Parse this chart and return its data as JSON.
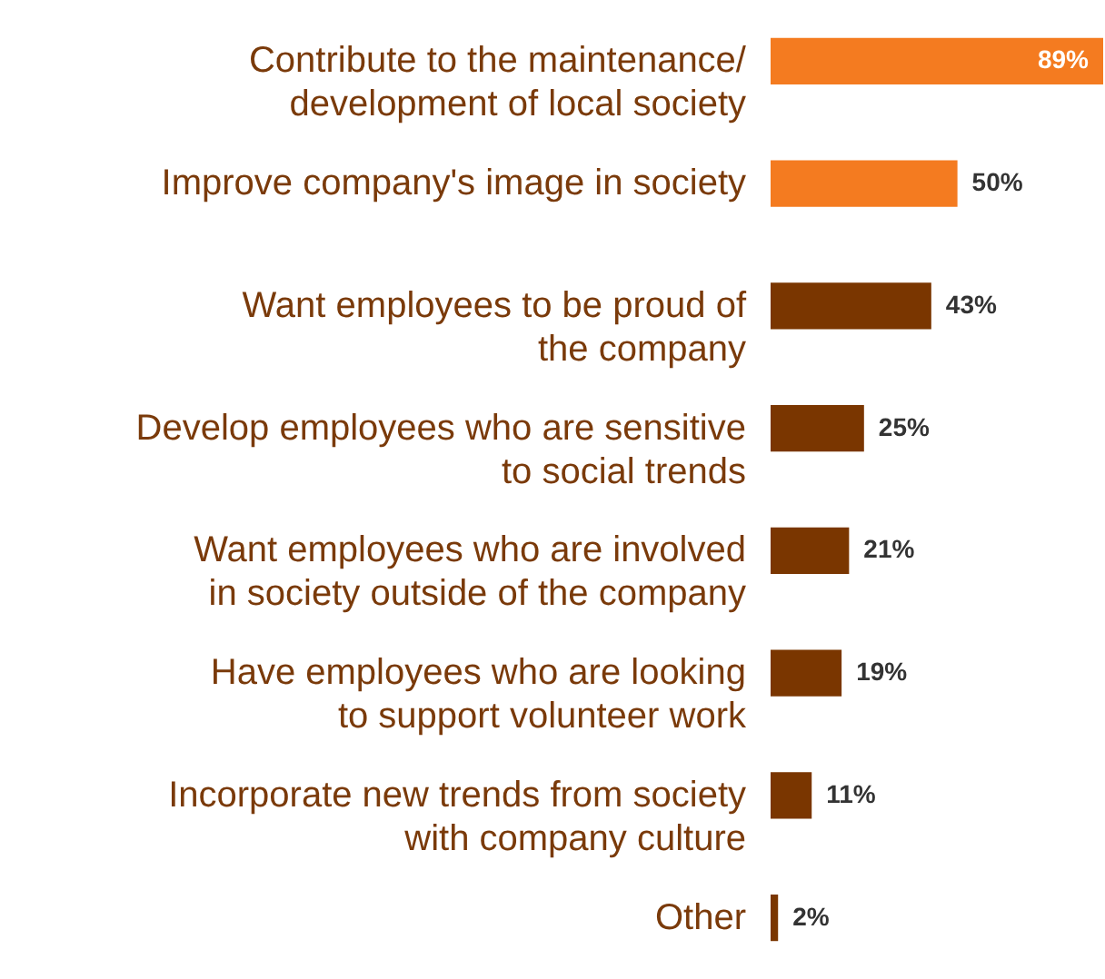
{
  "chart_data": {
    "type": "bar",
    "orientation": "horizontal",
    "categories": [
      "Contribute to the maintenance/\ndevelopment of local society",
      "Improve company's image in society",
      "Want employees to be proud of\nthe company",
      "Develop employees who are sensitive\nto social trends",
      "Want employees who are involved\nin society outside of the company",
      "Have employees who are looking\nto support volunteer work",
      "Incorporate new trends from society\nwith company culture",
      "Other"
    ],
    "values": [
      89,
      50,
      43,
      25,
      21,
      19,
      11,
      2
    ],
    "value_labels": [
      "89%",
      "50%",
      "43%",
      "25%",
      "21%",
      "19%",
      "11%",
      "2%"
    ],
    "colors": [
      "#f47b20",
      "#f47b20",
      "#7a3600",
      "#7a3600",
      "#7a3600",
      "#7a3600",
      "#7a3600",
      "#7a3600"
    ]
  }
}
